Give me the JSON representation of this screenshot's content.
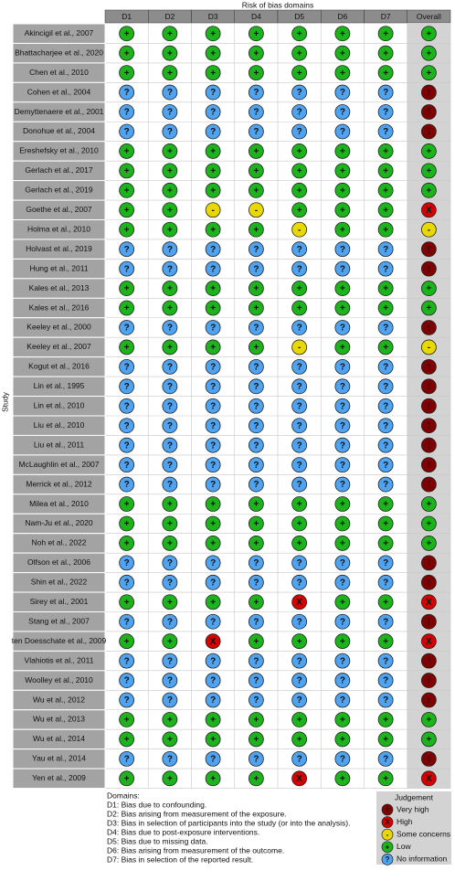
{
  "column_group_title": "Risk of bias domains",
  "row_axis_title": "Study",
  "columns": [
    "D1",
    "D2",
    "D3",
    "D4",
    "D5",
    "D6",
    "D7",
    "Overall"
  ],
  "rows": [
    {
      "study": "Akincigil et al., 2007",
      "judgements": [
        "+",
        "+",
        "+",
        "+",
        "+",
        "+",
        "+",
        "+"
      ]
    },
    {
      "study": "Bhattacharjee et al., 2020",
      "judgements": [
        "+",
        "+",
        "+",
        "+",
        "+",
        "+",
        "+",
        "+"
      ]
    },
    {
      "study": "Chen et al., 2010",
      "judgements": [
        "+",
        "+",
        "+",
        "+",
        "+",
        "+",
        "+",
        "+"
      ]
    },
    {
      "study": "Cohen et al., 2004",
      "judgements": [
        "?",
        "?",
        "?",
        "?",
        "?",
        "?",
        "?",
        "!"
      ]
    },
    {
      "study": "Demyttenaere et al., 2001",
      "judgements": [
        "?",
        "?",
        "?",
        "?",
        "?",
        "?",
        "?",
        "!"
      ]
    },
    {
      "study": "Donohue et al., 2004",
      "judgements": [
        "?",
        "?",
        "?",
        "?",
        "?",
        "?",
        "?",
        "!"
      ]
    },
    {
      "study": "Ereshefsky et al., 2010",
      "judgements": [
        "+",
        "+",
        "+",
        "+",
        "+",
        "+",
        "+",
        "+"
      ]
    },
    {
      "study": "Gerlach et al., 2017",
      "judgements": [
        "+",
        "+",
        "+",
        "+",
        "+",
        "+",
        "+",
        "+"
      ]
    },
    {
      "study": "Gerlach et al., 2019",
      "judgements": [
        "+",
        "+",
        "+",
        "+",
        "+",
        "+",
        "+",
        "+"
      ]
    },
    {
      "study": "Goethe et al., 2007",
      "judgements": [
        "+",
        "+",
        "-",
        "-",
        "+",
        "+",
        "+",
        "X"
      ]
    },
    {
      "study": "Holma et al., 2010",
      "judgements": [
        "+",
        "+",
        "+",
        "+",
        "-",
        "+",
        "+",
        "-"
      ]
    },
    {
      "study": "Holvast et al., 2019",
      "judgements": [
        "?",
        "?",
        "?",
        "?",
        "?",
        "?",
        "?",
        "!"
      ]
    },
    {
      "study": "Hung et al., 2011",
      "judgements": [
        "?",
        "?",
        "?",
        "?",
        "?",
        "?",
        "?",
        "!"
      ]
    },
    {
      "study": "Kales et al., 2013",
      "judgements": [
        "+",
        "+",
        "+",
        "+",
        "+",
        "+",
        "+",
        "+"
      ]
    },
    {
      "study": "Kales et al., 2016",
      "judgements": [
        "+",
        "+",
        "+",
        "+",
        "+",
        "+",
        "+",
        "+"
      ]
    },
    {
      "study": "Keeley et al., 2000",
      "judgements": [
        "?",
        "?",
        "?",
        "?",
        "?",
        "?",
        "?",
        "!"
      ]
    },
    {
      "study": "Keeley et al., 2007",
      "judgements": [
        "+",
        "+",
        "+",
        "+",
        "-",
        "+",
        "+",
        "-"
      ]
    },
    {
      "study": "Kogut et al., 2016",
      "judgements": [
        "?",
        "?",
        "?",
        "?",
        "?",
        "?",
        "?",
        "!"
      ]
    },
    {
      "study": "Lin et al., 1995",
      "judgements": [
        "?",
        "?",
        "?",
        "?",
        "?",
        "?",
        "?",
        "!"
      ]
    },
    {
      "study": "Lin et al., 2010",
      "judgements": [
        "?",
        "?",
        "?",
        "?",
        "?",
        "?",
        "?",
        "!"
      ]
    },
    {
      "study": "Liu et al., 2010",
      "judgements": [
        "?",
        "?",
        "?",
        "?",
        "?",
        "?",
        "?",
        "!"
      ]
    },
    {
      "study": "Liu et al., 2011",
      "judgements": [
        "?",
        "?",
        "?",
        "?",
        "?",
        "?",
        "?",
        "!"
      ]
    },
    {
      "study": "McLaughlin et al., 2007",
      "judgements": [
        "?",
        "?",
        "?",
        "?",
        "?",
        "?",
        "?",
        "!"
      ]
    },
    {
      "study": "Merrick et al., 2012",
      "judgements": [
        "?",
        "?",
        "?",
        "?",
        "?",
        "?",
        "?",
        "!"
      ]
    },
    {
      "study": "Milea et al., 2010",
      "judgements": [
        "+",
        "+",
        "+",
        "+",
        "+",
        "+",
        "+",
        "+"
      ]
    },
    {
      "study": "Nam-Ju et al., 2020",
      "judgements": [
        "+",
        "+",
        "+",
        "+",
        "+",
        "+",
        "+",
        "+"
      ]
    },
    {
      "study": "Noh et al., 2022",
      "judgements": [
        "+",
        "+",
        "+",
        "+",
        "+",
        "+",
        "+",
        "+"
      ]
    },
    {
      "study": "Olfson et al., 2006",
      "judgements": [
        "?",
        "?",
        "?",
        "?",
        "?",
        "?",
        "?",
        "!"
      ]
    },
    {
      "study": "Shin et al., 2022",
      "judgements": [
        "?",
        "?",
        "?",
        "?",
        "?",
        "?",
        "?",
        "!"
      ]
    },
    {
      "study": "Sirey et al., 2001",
      "judgements": [
        "+",
        "+",
        "+",
        "+",
        "X",
        "+",
        "+",
        "X"
      ]
    },
    {
      "study": "Stang et al., 2007",
      "judgements": [
        "?",
        "?",
        "?",
        "?",
        "?",
        "?",
        "?",
        "!"
      ]
    },
    {
      "study": "ten Doesschate et al., 2009",
      "judgements": [
        "+",
        "+",
        "X",
        "+",
        "+",
        "+",
        "+",
        "X"
      ]
    },
    {
      "study": "Vlahiotis et al., 2011",
      "judgements": [
        "?",
        "?",
        "?",
        "?",
        "?",
        "?",
        "?",
        "!"
      ]
    },
    {
      "study": "Woolley et al., 2010",
      "judgements": [
        "?",
        "?",
        "?",
        "?",
        "?",
        "?",
        "?",
        "!"
      ]
    },
    {
      "study": "Wu et al., 2012",
      "judgements": [
        "?",
        "?",
        "?",
        "?",
        "?",
        "?",
        "?",
        "!"
      ]
    },
    {
      "study": "Wu et al., 2013",
      "judgements": [
        "+",
        "+",
        "+",
        "+",
        "+",
        "+",
        "+",
        "+"
      ]
    },
    {
      "study": "Wu et al., 2014",
      "judgements": [
        "+",
        "+",
        "+",
        "+",
        "+",
        "+",
        "+",
        "+"
      ]
    },
    {
      "study": "Yau et al., 2014",
      "judgements": [
        "?",
        "?",
        "?",
        "?",
        "?",
        "?",
        "?",
        "!"
      ]
    },
    {
      "study": "Yen et al., 2009",
      "judgements": [
        "+",
        "+",
        "+",
        "+",
        "X",
        "+",
        "+",
        "X"
      ]
    }
  ],
  "domains": {
    "title": "Domains:",
    "items": [
      "D1: Bias due to confounding.",
      "D2: Bias arising from measurement of the exposure.",
      "D3: Bias in selection of participants into the study (or into the analysis).",
      "D4: Bias due to post-exposure interventions.",
      "D5: Bias due to missing data.",
      "D6: Bias arising from measurement of the outcome.",
      "D7: Bias in selection of the reported result."
    ]
  },
  "legend": {
    "title": "Judgement",
    "items": [
      {
        "symbol": "!",
        "label": "Very high",
        "color": "#7f0000"
      },
      {
        "symbol": "X",
        "label": "High",
        "color": "#d40000"
      },
      {
        "symbol": "-",
        "label": "Some concerns",
        "color": "#e8d800"
      },
      {
        "symbol": "+",
        "label": "Low",
        "color": "#1db31d"
      },
      {
        "symbol": "?",
        "label": "No information",
        "color": "#4fa3f0"
      }
    ]
  }
}
